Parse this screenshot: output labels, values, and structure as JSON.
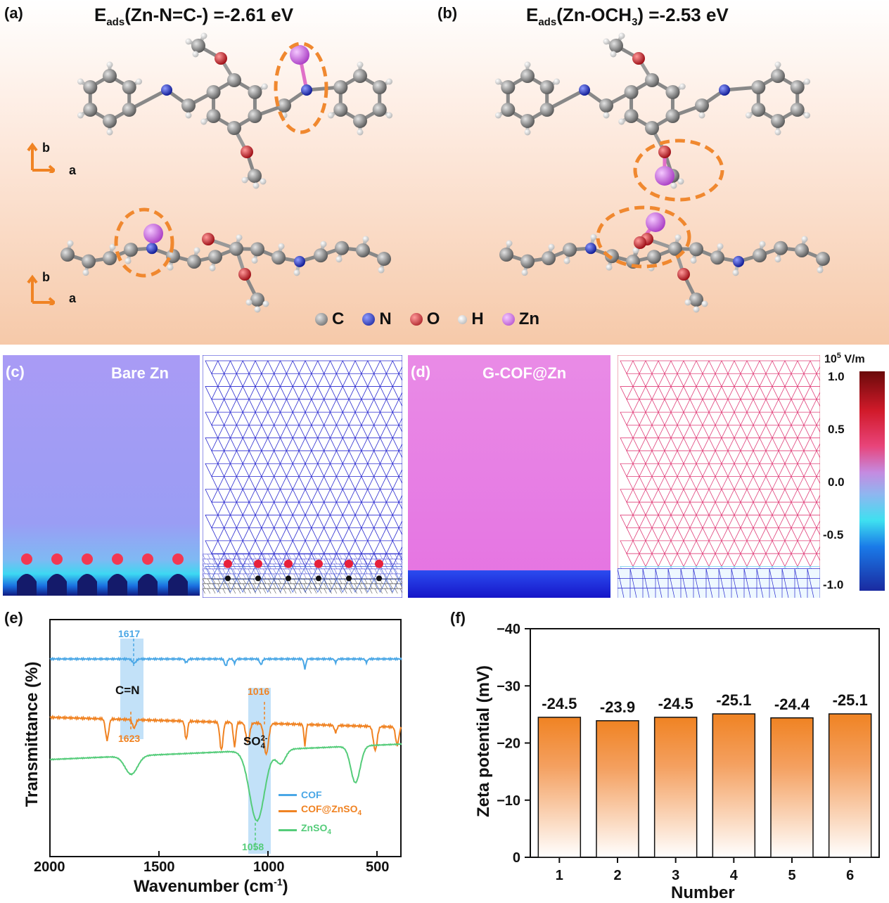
{
  "panels": {
    "a": {
      "label": "(a)",
      "title_main": "E",
      "title_sub": "ads",
      "title_rest": "(Zn-N=C-) =-2.61 eV"
    },
    "b": {
      "label": "(b)",
      "title_main": "E",
      "title_sub": "ads",
      "title_rest_1": "(Zn-OCH",
      "title_sub2": "3",
      "title_rest_2": ") =-2.53 eV"
    },
    "c": {
      "label": "(c)",
      "title": "Bare Zn"
    },
    "d": {
      "label": "(d)",
      "title": "G-COF@Zn"
    },
    "e": {
      "label": "(e)"
    },
    "f": {
      "label": "(f)"
    }
  },
  "axes_tag": {
    "b": "b",
    "a": "a"
  },
  "atom_legend": [
    {
      "symbol": "C",
      "color": "#7a7a7a"
    },
    {
      "symbol": "N",
      "color": "#1a28b8"
    },
    {
      "symbol": "O",
      "color": "#c8141c"
    },
    {
      "symbol": "H",
      "color": "#d8d8d8"
    },
    {
      "symbol": "Zn",
      "color": "#c35fd6"
    }
  ],
  "colorbar": {
    "unit_base": "10",
    "unit_exp": "5",
    "unit_rest": " V/m",
    "ticks": [
      "1.0",
      "0.5",
      "0.0",
      "-0.5",
      "-1.0"
    ]
  },
  "ir": {
    "xlabel": "Wavenumber  (cm",
    "xlabel_exp": "-1",
    "xlabel_end": ")",
    "ylabel": "Transmittance  (%)",
    "xticks": [
      "2000",
      "1500",
      "1000",
      "500"
    ],
    "annotations": {
      "cof_peak": "1617",
      "cn": "C=N",
      "cofzn_peak": "1623",
      "so_peak": "1016",
      "so_label": "SO",
      "so_sub": "4",
      "so_sup": "2-",
      "zn_peak": "1058"
    },
    "legend": [
      {
        "name": "COF",
        "color": "#4aa7e6"
      },
      {
        "name": "COF@ZnSO4",
        "display_main": "COF@ZnSO",
        "display_sub": "4",
        "color": "#f08323"
      },
      {
        "name": "ZnSO4",
        "display_main": "ZnSO",
        "display_sub": "4",
        "color": "#55cc7a"
      }
    ]
  },
  "chart_data": {
    "type": "bar",
    "categories": [
      "1",
      "2",
      "3",
      "4",
      "5",
      "6"
    ],
    "values": [
      -24.5,
      -23.9,
      -24.5,
      -25.1,
      -24.4,
      -25.1
    ],
    "value_labels": [
      "-24.5",
      "-23.9",
      "-24.5",
      "-25.1",
      "-24.4",
      "-25.1"
    ],
    "xlabel": "Number",
    "ylabel": "Zeta potential (mV)",
    "ylim": [
      0,
      -40
    ],
    "yticks": [
      "0",
      "−10",
      "−20",
      "−30",
      "−40"
    ],
    "bar_color": "#f08323"
  }
}
